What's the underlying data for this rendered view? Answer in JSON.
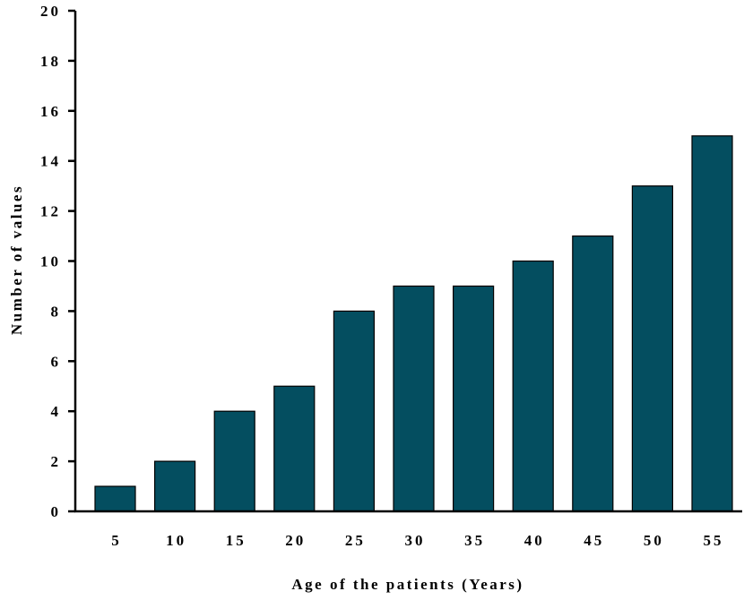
{
  "chart_data": {
    "type": "bar",
    "categories": [
      "5",
      "10",
      "15",
      "20",
      "25",
      "30",
      "35",
      "40",
      "45",
      "50",
      "55"
    ],
    "values": [
      1,
      2,
      4,
      5,
      8,
      9,
      9,
      10,
      11,
      13,
      15
    ],
    "title": "",
    "xlabel": "Age of the patients (Years)",
    "ylabel": "Number of values",
    "ylim": [
      0,
      20
    ],
    "yticks": [
      0,
      2,
      4,
      6,
      8,
      10,
      12,
      14,
      16,
      18,
      20
    ],
    "bar_color": "#044e60",
    "grid": false,
    "legend": "none"
  }
}
